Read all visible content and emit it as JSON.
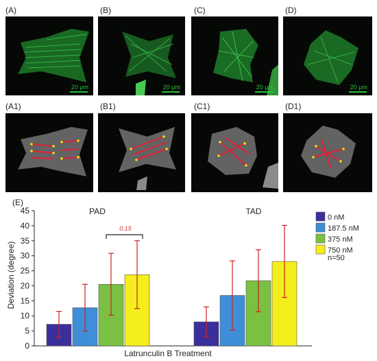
{
  "panels_top": [
    {
      "label": "(A)",
      "scale": "20 μm"
    },
    {
      "label": "(B)",
      "scale": "20 μm"
    },
    {
      "label": "(C)",
      "scale": "20 μm"
    },
    {
      "label": "(D)",
      "scale": "20 μm"
    }
  ],
  "panels_bottom": [
    {
      "label": "(A1)"
    },
    {
      "label": "(B1)"
    },
    {
      "label": "(C1)"
    },
    {
      "label": "(D1)"
    }
  ],
  "colors": {
    "green_fluor": "#2fc43c",
    "gray_cell": "#8a8a8a",
    "red_fiber": "#e0203a",
    "yellow_point": "#f2e400",
    "error_bar": "#cc2222"
  },
  "chart_data": {
    "type": "bar",
    "panel_label": "(E)",
    "groups": [
      "PAD",
      "TAD"
    ],
    "series": [
      {
        "name": "0 nM",
        "color": "#3b2f9c",
        "values": [
          7.2,
          8.0
        ],
        "errors": [
          4.3,
          5.0
        ]
      },
      {
        "name": "187.5 nM",
        "color": "#3f8fd8",
        "values": [
          12.7,
          16.8
        ],
        "errors": [
          7.8,
          11.5
        ]
      },
      {
        "name": "375 nM",
        "color": "#79c043",
        "values": [
          20.5,
          21.7
        ],
        "errors": [
          10.3,
          10.3
        ]
      },
      {
        "name": "750 nM",
        "color": "#f5ee1d",
        "values": [
          23.7,
          28.1
        ],
        "errors": [
          11.3,
          12.0
        ]
      }
    ],
    "legend_note": "n=50",
    "annotation": "0.15",
    "ylabel": "Deviation (degree)",
    "xlabel": "Latrunculin B Treatment",
    "ylim": [
      0,
      45
    ],
    "yticks": [
      0,
      5,
      10,
      15,
      20,
      25,
      30,
      35,
      40,
      45
    ],
    "legend_position": "top-right"
  }
}
